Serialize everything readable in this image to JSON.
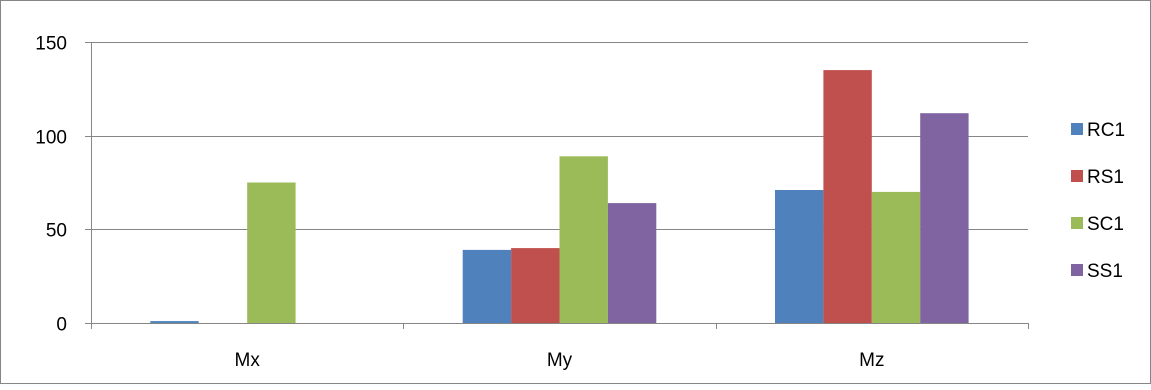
{
  "chart_data": {
    "type": "bar",
    "categories": [
      "Mx",
      "My",
      "Mz"
    ],
    "series": [
      {
        "name": "RC1",
        "color": "#4F81BD",
        "values": [
          1,
          39,
          71
        ]
      },
      {
        "name": "RS1",
        "color": "#C0504D",
        "values": [
          0,
          40,
          135
        ]
      },
      {
        "name": "SC1",
        "color": "#9BBB59",
        "values": [
          75,
          89,
          70
        ]
      },
      {
        "name": "SS1",
        "color": "#8064A2",
        "values": [
          0,
          64,
          112
        ]
      }
    ],
    "ylim": [
      0,
      150
    ],
    "yticks": [
      0,
      50,
      100,
      150
    ],
    "title": "",
    "xlabel": "",
    "ylabel": "",
    "grid": true,
    "legend_position": "right"
  }
}
